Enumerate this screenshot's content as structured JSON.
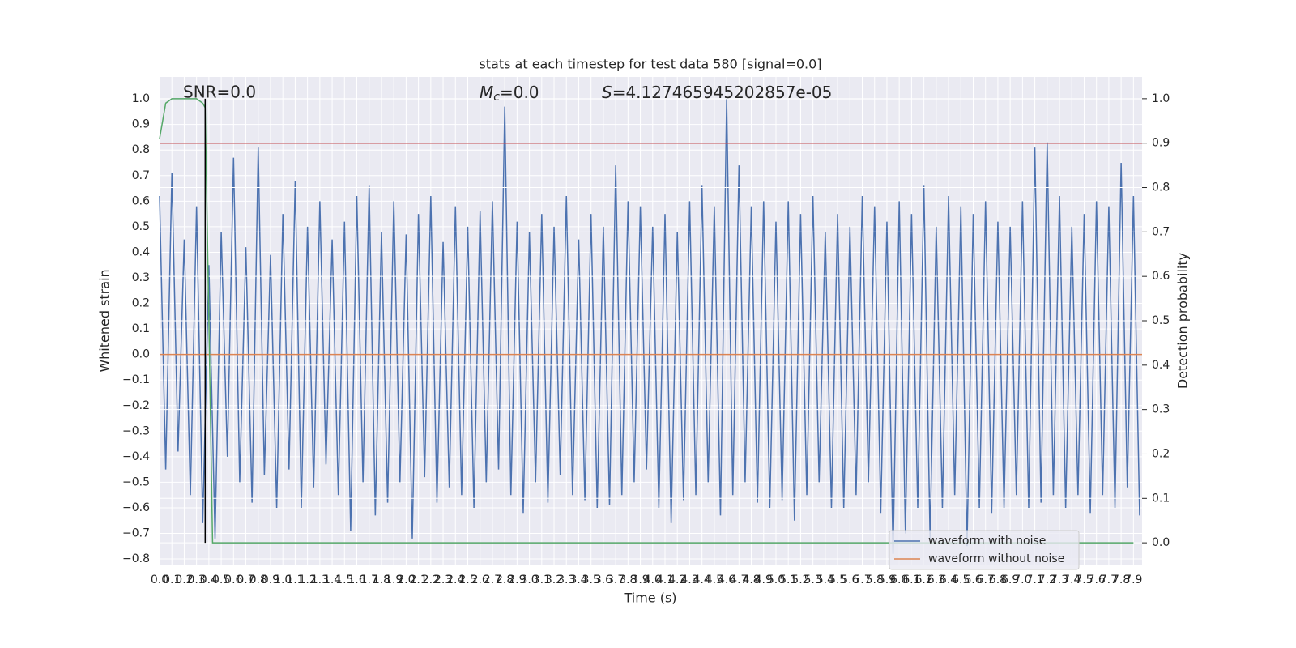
{
  "chart_data": {
    "type": "line",
    "title": "stats at each timestep for test data 580 [signal=0.0]",
    "xlabel": "Time (s)",
    "ylabel": "Whitened strain",
    "y2label": "Detection probability",
    "annotations": [
      "SNR=0.0",
      {
        "symbol": "M",
        "sub": "c",
        "rest": "=0.0"
      },
      {
        "symbol": "S",
        "rest": "=4.127465945202857e-05"
      }
    ],
    "grid": true,
    "legend": "lower right",
    "xlim": [
      0,
      7.97
    ],
    "ylim": [
      -0.822,
      1.086
    ],
    "y2lim": [
      -0.049,
      1.049
    ],
    "xticks": [
      {
        "value": 0,
        "label": "0.0"
      },
      0.1,
      0.2,
      0.3,
      0.4,
      0.5,
      0.6,
      0.7,
      0.8,
      0.9,
      {
        "value": 1,
        "label": "1.0"
      },
      1.1,
      1.2,
      1.3,
      1.4,
      1.5,
      1.6,
      1.7,
      1.8,
      1.9,
      {
        "value": 2,
        "label": "2.0"
      },
      2.1,
      2.2,
      2.3,
      2.4,
      2.5,
      2.6,
      2.7,
      2.8,
      2.9,
      {
        "value": 3,
        "label": "3.0"
      },
      3.1,
      3.2,
      3.3,
      3.4,
      3.5,
      3.6,
      3.7,
      3.8,
      3.9,
      {
        "value": 4,
        "label": "4.0"
      },
      4.1,
      4.2,
      4.3,
      4.4,
      4.5,
      4.6,
      4.7,
      4.8,
      4.9,
      {
        "value": 5,
        "label": "5.0"
      },
      5.1,
      5.2,
      5.3,
      5.4,
      5.5,
      5.6,
      5.7,
      5.8,
      5.9,
      {
        "value": 6,
        "label": "6.0"
      },
      6.1,
      6.2,
      6.3,
      6.4,
      6.5,
      6.6,
      6.7,
      6.8,
      6.9,
      {
        "value": 7,
        "label": "7.0"
      },
      7.1,
      7.2,
      7.3,
      7.4,
      7.5,
      7.6,
      7.7,
      7.8,
      7.9
    ],
    "yticks": [
      {
        "value": -0.8,
        "label": "−0.8"
      },
      {
        "value": -0.7,
        "label": "−0.7"
      },
      {
        "value": -0.6,
        "label": "−0.6"
      },
      {
        "value": -0.5,
        "label": "−0.5"
      },
      {
        "value": -0.4,
        "label": "−0.4"
      },
      {
        "value": -0.3,
        "label": "−0.3"
      },
      {
        "value": -0.2,
        "label": "−0.2"
      },
      {
        "value": -0.1,
        "label": "−0.1"
      },
      {
        "value": 0,
        "label": "0.0"
      },
      0.1,
      0.2,
      0.3,
      0.4,
      0.5,
      0.6,
      0.7,
      0.8,
      0.9,
      {
        "value": 1,
        "label": "1.0"
      }
    ],
    "y2ticks": [
      {
        "value": 0,
        "label": "0.0"
      },
      0.1,
      0.2,
      0.3,
      0.4,
      0.5,
      0.6,
      0.7,
      0.8,
      0.9,
      {
        "value": 1,
        "label": "1.0"
      }
    ],
    "series": [
      {
        "name": "waveform with noise",
        "color": "#4c72b0",
        "x": [
          0,
          0.05,
          0.1,
          0.15,
          0.2,
          0.25,
          0.3,
          0.35,
          0.4,
          0.45,
          0.5,
          0.55,
          0.6,
          0.65,
          0.7,
          0.75,
          0.8,
          0.85,
          0.9,
          0.95,
          1,
          1.05,
          1.1,
          1.15,
          1.2,
          1.25,
          1.3,
          1.35,
          1.4,
          1.45,
          1.5,
          1.55,
          1.6,
          1.65,
          1.7,
          1.75,
          1.8,
          1.85,
          1.9,
          1.95,
          2,
          2.05,
          2.1,
          2.15,
          2.2,
          2.25,
          2.3,
          2.35,
          2.4,
          2.45,
          2.5,
          2.55,
          2.6,
          2.65,
          2.7,
          2.75,
          2.8,
          2.85,
          2.9,
          2.95,
          3,
          3.05,
          3.1,
          3.15,
          3.2,
          3.25,
          3.3,
          3.35,
          3.4,
          3.45,
          3.5,
          3.55,
          3.6,
          3.65,
          3.7,
          3.75,
          3.8,
          3.85,
          3.9,
          3.95,
          4,
          4.05,
          4.1,
          4.15,
          4.2,
          4.25,
          4.3,
          4.35,
          4.4,
          4.45,
          4.5,
          4.55,
          4.6,
          4.65,
          4.7,
          4.75,
          4.8,
          4.85,
          4.9,
          4.95,
          5,
          5.05,
          5.1,
          5.15,
          5.2,
          5.25,
          5.3,
          5.35,
          5.4,
          5.45,
          5.5,
          5.55,
          5.6,
          5.65,
          5.7,
          5.75,
          5.8,
          5.85,
          5.9,
          5.95,
          6,
          6.05,
          6.1,
          6.15,
          6.2,
          6.25,
          6.3,
          6.35,
          6.4,
          6.45,
          6.5,
          6.55,
          6.6,
          6.65,
          6.7,
          6.75,
          6.8,
          6.85,
          6.9,
          6.95,
          7,
          7.05,
          7.1,
          7.15,
          7.2,
          7.25,
          7.3,
          7.35,
          7.4,
          7.45,
          7.5,
          7.55,
          7.6,
          7.65,
          7.7,
          7.75,
          7.8,
          7.85,
          7.9,
          7.95
        ],
        "values": [
          0.62,
          -0.45,
          0.71,
          -0.38,
          0.45,
          -0.55,
          0.58,
          -0.66,
          0.35,
          -0.72,
          0.48,
          -0.4,
          0.77,
          -0.5,
          0.42,
          -0.58,
          0.81,
          -0.47,
          0.39,
          -0.6,
          0.55,
          -0.45,
          0.68,
          -0.6,
          0.5,
          -0.52,
          0.6,
          -0.43,
          0.45,
          -0.55,
          0.52,
          -0.69,
          0.62,
          -0.5,
          0.66,
          -0.63,
          0.48,
          -0.58,
          0.6,
          -0.5,
          0.47,
          -0.72,
          0.55,
          -0.48,
          0.62,
          -0.58,
          0.44,
          -0.52,
          0.58,
          -0.55,
          0.5,
          -0.6,
          0.56,
          -0.5,
          0.6,
          -0.45,
          0.97,
          -0.55,
          0.52,
          -0.62,
          0.48,
          -0.5,
          0.55,
          -0.58,
          0.5,
          -0.47,
          0.62,
          -0.55,
          0.45,
          -0.57,
          0.55,
          -0.6,
          0.5,
          -0.59,
          0.74,
          -0.55,
          0.6,
          -0.5,
          0.58,
          -0.45,
          0.5,
          -0.6,
          0.55,
          -0.66,
          0.48,
          -0.57,
          0.6,
          -0.55,
          0.66,
          -0.5,
          0.58,
          -0.63,
          1.0,
          -0.55,
          0.74,
          -0.5,
          0.58,
          -0.58,
          0.6,
          -0.6,
          0.52,
          -0.57,
          0.6,
          -0.65,
          0.55,
          -0.55,
          0.62,
          -0.5,
          0.48,
          -0.6,
          0.55,
          -0.6,
          0.5,
          -0.55,
          0.62,
          -0.5,
          0.58,
          -0.62,
          0.52,
          -0.78,
          0.6,
          -0.7,
          0.55,
          -0.6,
          0.66,
          -0.72,
          0.5,
          -0.6,
          0.62,
          -0.55,
          0.58,
          -0.75,
          0.55,
          -0.6,
          0.6,
          -0.62,
          0.52,
          -0.6,
          0.5,
          -0.55,
          0.6,
          -0.6,
          0.81,
          -0.58,
          0.83,
          -0.55,
          0.62,
          -0.6,
          0.5,
          -0.55,
          0.55,
          -0.62,
          0.6,
          -0.55,
          0.58,
          -0.6,
          0.75,
          -0.52,
          0.62,
          -0.63
        ]
      },
      {
        "name": "waveform without noise",
        "color": "#dd8452",
        "x": [
          0,
          7.97
        ],
        "values": [
          0,
          0
        ]
      },
      {
        "color": "#55a868",
        "axis": "y2",
        "x": [
          0,
          0.05,
          0.1,
          0.15,
          0.2,
          0.25,
          0.3,
          0.35,
          0.37,
          0.4,
          0.43,
          0.5,
          7.9
        ],
        "values": [
          0.91,
          0.99,
          1.0,
          1.0,
          1.0,
          1.0,
          1.0,
          0.99,
          0.98,
          0.5,
          0.0,
          0.0,
          0.0
        ]
      },
      {
        "color": "#c44e52",
        "axis": "y2",
        "x": [
          0,
          7.97
        ],
        "values": [
          0.9,
          0.9
        ]
      },
      {
        "color": "#000000",
        "axis": "y2",
        "x": [
          0.37,
          0.37
        ],
        "values": [
          0.0,
          1.0
        ]
      }
    ]
  }
}
